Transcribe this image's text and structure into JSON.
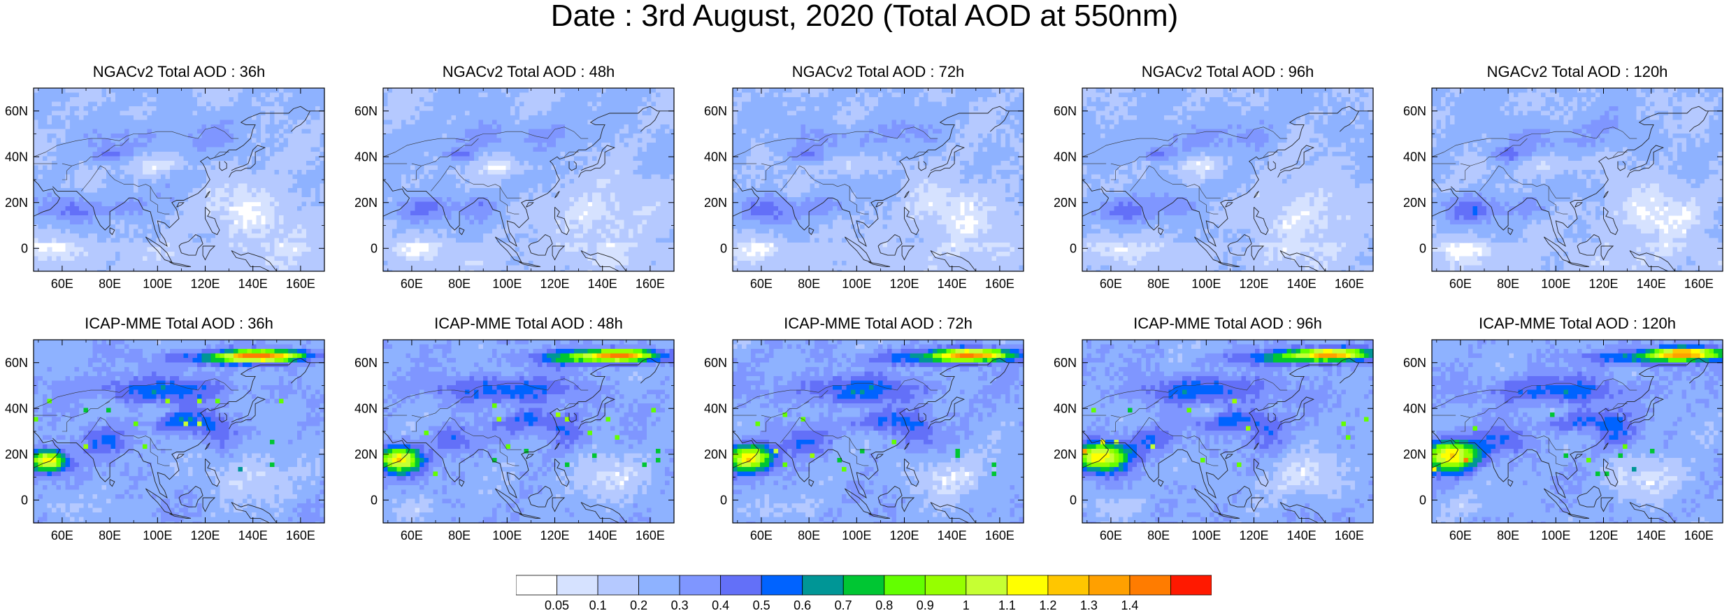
{
  "title": "Date : 3rd August, 2020 (Total AOD at 550nm)",
  "rows": [
    {
      "model": "NGACv2",
      "panels": [
        {
          "title": "NGACv2 Total AOD : 36h"
        },
        {
          "title": "NGACv2 Total AOD : 48h"
        },
        {
          "title": "NGACv2 Total AOD : 72h"
        },
        {
          "title": "NGACv2 Total AOD : 96h"
        },
        {
          "title": "NGACv2 Total AOD : 120h"
        }
      ]
    },
    {
      "model": "ICAP-MME",
      "panels": [
        {
          "title": "ICAP-MME Total AOD : 36h"
        },
        {
          "title": "ICAP-MME Total AOD : 48h"
        },
        {
          "title": "ICAP-MME Total AOD : 72h"
        },
        {
          "title": "ICAP-MME Total AOD : 96h"
        },
        {
          "title": "ICAP-MME Total AOD : 120h"
        }
      ]
    }
  ],
  "axes": {
    "lon_ticks": [
      "60E",
      "80E",
      "100E",
      "120E",
      "140E",
      "160E"
    ],
    "lon_values": [
      60,
      80,
      100,
      120,
      140,
      160
    ],
    "lon_range": [
      48,
      170
    ],
    "lat_ticks": [
      "60N",
      "40N",
      "20N",
      "0"
    ],
    "lat_values": [
      60,
      40,
      20,
      0
    ],
    "lat_range": [
      -10,
      70
    ]
  },
  "colorbar": {
    "labels": [
      "0.05",
      "0.1",
      "0.2",
      "0.3",
      "0.4",
      "0.5",
      "0.6",
      "0.7",
      "0.8",
      "0.9",
      "1",
      "1.1",
      "1.2",
      "1.3",
      "1.4"
    ],
    "colors": [
      "#ffffff",
      "#d6e2ff",
      "#b5c9ff",
      "#8eb2ff",
      "#7f96ff",
      "#6370f8",
      "#0063ff",
      "#009696",
      "#00c633",
      "#63ff00",
      "#96ff00",
      "#c6ff33",
      "#ffff00",
      "#ffc600",
      "#ffa000",
      "#ff7c00",
      "#ff1900"
    ]
  }
}
